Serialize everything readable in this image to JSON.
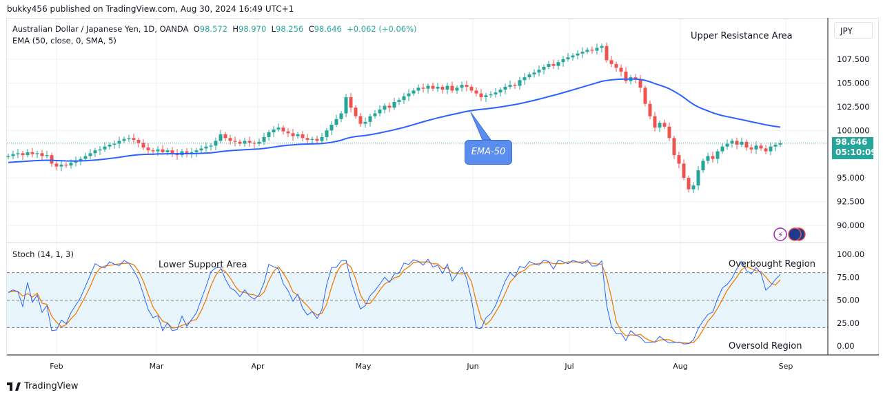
{
  "header": {
    "published": "bukky456 published on TradingView.com, Aug 30, 2024 16:49 UTC+1"
  },
  "legend": {
    "symbol": "Australian Dollar / Japanese Yen, 1D, OANDA",
    "o_label": "O",
    "o": "98.572",
    "h_label": "H",
    "h": "98.970",
    "l_label": "L",
    "l": "98.256",
    "c_label": "C",
    "c": "98.646",
    "change": "+0.062 (+0.06%)",
    "ema": "EMA (50, close, 0, SMA, 5)",
    "stoch": "Stoch (14, 1, 3)"
  },
  "currency": "JPY",
  "last_price": {
    "price": "98.646",
    "countdown": "05:10:09"
  },
  "annotations": {
    "upper": "Upper Resistance Area",
    "lower": "Lower Support Area",
    "overbought": "Overbought Region",
    "oversold": "Oversold Region",
    "ema_callout": "EMA-50"
  },
  "footer": {
    "brand": "TradingView"
  },
  "colors": {
    "up": "#26a69a",
    "down": "#ef5350",
    "ema": "#2962ff",
    "k": "#2962ff",
    "d": "#f57c00",
    "band": "#e3f2fd"
  },
  "chart_data": [
    {
      "type": "candlestick",
      "title": "Australian Dollar / Japanese Yen, 1D, OANDA",
      "ylim": [
        88.5,
        109.5
      ],
      "yticks": [
        "107.500",
        "105.000",
        "102.500",
        "100.000",
        "95.000",
        "92.500",
        "90.000"
      ],
      "xticks": [
        "Feb",
        "Mar",
        "Apr",
        "May",
        "Jun",
        "Jul",
        "Aug",
        "Sep"
      ],
      "grid": true,
      "close": [
        97.3,
        97.5,
        97.6,
        97.4,
        97.7,
        97.5,
        97.6,
        97.3,
        97.4,
        96.5,
        96.2,
        96.4,
        96.3,
        96.6,
        96.8,
        97.0,
        97.3,
        97.6,
        97.9,
        98.0,
        98.3,
        98.5,
        98.6,
        98.9,
        99.1,
        99.2,
        99.0,
        98.7,
        98.2,
        97.9,
        97.8,
        98.0,
        97.7,
        97.9,
        97.6,
        97.4,
        97.8,
        97.5,
        97.7,
        97.9,
        98.1,
        98.3,
        98.4,
        98.9,
        99.6,
        99.2,
        98.9,
        98.8,
        98.6,
        98.9,
        98.7,
        98.6,
        98.8,
        99.3,
        99.8,
        100.1,
        100.3,
        99.9,
        99.7,
        99.4,
        99.6,
        99.2,
        99.0,
        99.1,
        98.9,
        99.3,
        100.0,
        100.6,
        101.2,
        101.8,
        103.5,
        102.4,
        101.5,
        100.7,
        100.9,
        101.5,
        101.8,
        102.2,
        102.6,
        102.4,
        103.0,
        103.2,
        103.6,
        103.9,
        104.2,
        104.5,
        104.4,
        104.7,
        104.4,
        104.6,
        104.3,
        104.7,
        104.2,
        104.5,
        104.8,
        104.6,
        104.2,
        103.9,
        103.5,
        103.7,
        103.8,
        104.0,
        104.3,
        104.6,
        104.8,
        104.7,
        105.3,
        105.6,
        105.9,
        106.1,
        106.4,
        106.7,
        107.0,
        106.8,
        107.2,
        107.5,
        107.7,
        107.9,
        108.1,
        108.3,
        108.5,
        108.4,
        108.7,
        108.9,
        107.4,
        107.0,
        106.6,
        106.2,
        105.2,
        105.6,
        105.4,
        104.5,
        102.8,
        101.5,
        100.3,
        100.8,
        100.4,
        99.2,
        97.4,
        96.5,
        95.0,
        93.8,
        94.2,
        95.8,
        96.8,
        97.3,
        97.0,
        97.8,
        98.3,
        98.6,
        98.9,
        98.5,
        98.8,
        98.2,
        98.0,
        98.4,
        98.1,
        97.8,
        98.3,
        98.5,
        98.646
      ],
      "ema_period": 50
    },
    {
      "type": "line",
      "title": "Stoch (14, 1, 3)",
      "ylim": [
        -10,
        105
      ],
      "yticks": [
        "100.00",
        "75.00",
        "50.00",
        "25.00",
        "0.00"
      ],
      "levels": [
        80,
        50,
        20
      ]
    }
  ]
}
